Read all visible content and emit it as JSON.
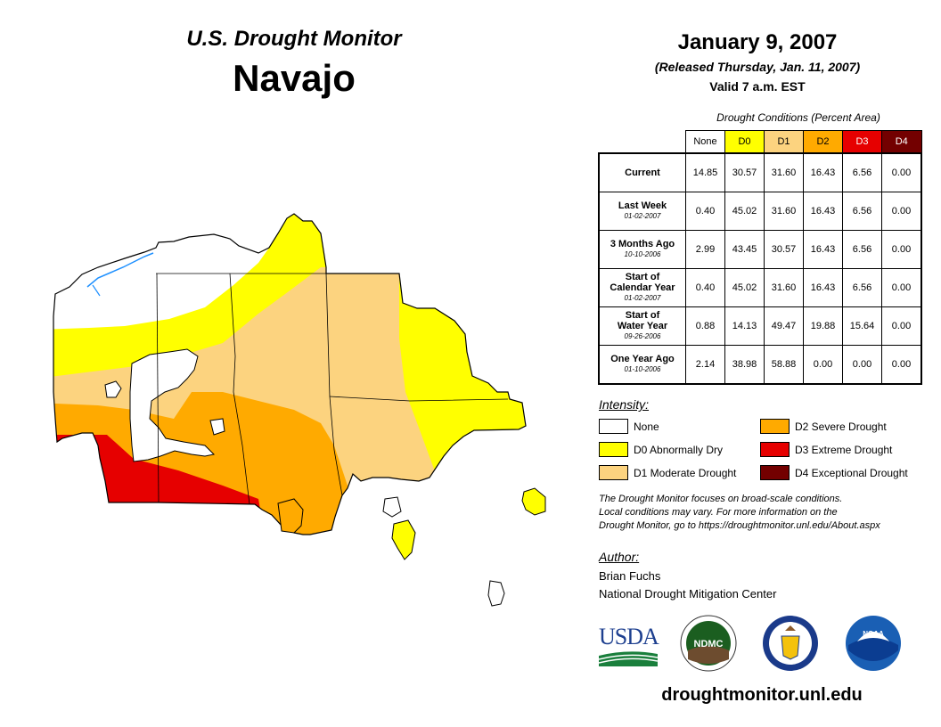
{
  "header": {
    "subtitle": "U.S. Drought Monitor",
    "title": "Navajo",
    "date": "January 9, 2007",
    "released": "(Released Thursday, Jan. 11, 2007)",
    "valid": "Valid 7 a.m. EST"
  },
  "conditions": {
    "caption": "Drought Conditions (Percent Area)",
    "columns": [
      {
        "label": "None",
        "color": "#ffffff",
        "text_color": "#000000"
      },
      {
        "label": "D0",
        "color": "#ffff00",
        "text_color": "#000000"
      },
      {
        "label": "D1",
        "color": "#fcd37f",
        "text_color": "#000000"
      },
      {
        "label": "D2",
        "color": "#ffaa00",
        "text_color": "#000000"
      },
      {
        "label": "D3",
        "color": "#e60000",
        "text_color": "#ffffff"
      },
      {
        "label": "D4",
        "color": "#730000",
        "text_color": "#ffffff"
      }
    ],
    "rows": [
      {
        "label_lines": [
          "Current"
        ],
        "date": "",
        "values": [
          "14.85",
          "30.57",
          "31.60",
          "16.43",
          "6.56",
          "0.00"
        ]
      },
      {
        "label_lines": [
          "Last Week"
        ],
        "date": "01-02-2007",
        "values": [
          "0.40",
          "45.02",
          "31.60",
          "16.43",
          "6.56",
          "0.00"
        ]
      },
      {
        "label_lines": [
          "3 Months Ago"
        ],
        "date": "10-10-2006",
        "values": [
          "2.99",
          "43.45",
          "30.57",
          "16.43",
          "6.56",
          "0.00"
        ]
      },
      {
        "label_lines": [
          "Start of",
          "Calendar Year"
        ],
        "date": "01-02-2007",
        "values": [
          "0.40",
          "45.02",
          "31.60",
          "16.43",
          "6.56",
          "0.00"
        ]
      },
      {
        "label_lines": [
          "Start of",
          "Water Year"
        ],
        "date": "09-26-2006",
        "values": [
          "0.88",
          "14.13",
          "49.47",
          "19.88",
          "15.64",
          "0.00"
        ]
      },
      {
        "label_lines": [
          "One Year Ago"
        ],
        "date": "01-10-2006",
        "values": [
          "2.14",
          "38.98",
          "58.88",
          "0.00",
          "0.00",
          "0.00"
        ]
      }
    ]
  },
  "legend": {
    "title": "Intensity:",
    "items": [
      {
        "label": "None",
        "color": "#ffffff"
      },
      {
        "label": "D0 Abnormally Dry",
        "color": "#ffff00"
      },
      {
        "label": "D1 Moderate Drought",
        "color": "#fcd37f"
      },
      {
        "label": "D2 Severe Drought",
        "color": "#ffaa00"
      },
      {
        "label": "D3 Extreme Drought",
        "color": "#e60000"
      },
      {
        "label": "D4 Exceptional Drought",
        "color": "#730000"
      }
    ]
  },
  "note_lines": [
    "The Drought Monitor focuses on broad-scale conditions.",
    "Local conditions may vary. For more information on the",
    "Drought Monitor, go to https://droughtmonitor.unl.edu/About.aspx"
  ],
  "author": {
    "title": "Author:",
    "name": "Brian Fuchs",
    "org": "National Drought Mitigation Center"
  },
  "logos": {
    "usda": "USDA",
    "ndmc": "NDMC",
    "noaa": "NOAA"
  },
  "footer": {
    "url": "droughtmonitor.unl.edu"
  },
  "map_colors": {
    "none": "#ffffff",
    "d0": "#ffff00",
    "d1": "#fcd37f",
    "d2": "#ffaa00",
    "d3": "#e60000",
    "water": "#1e90ff"
  }
}
